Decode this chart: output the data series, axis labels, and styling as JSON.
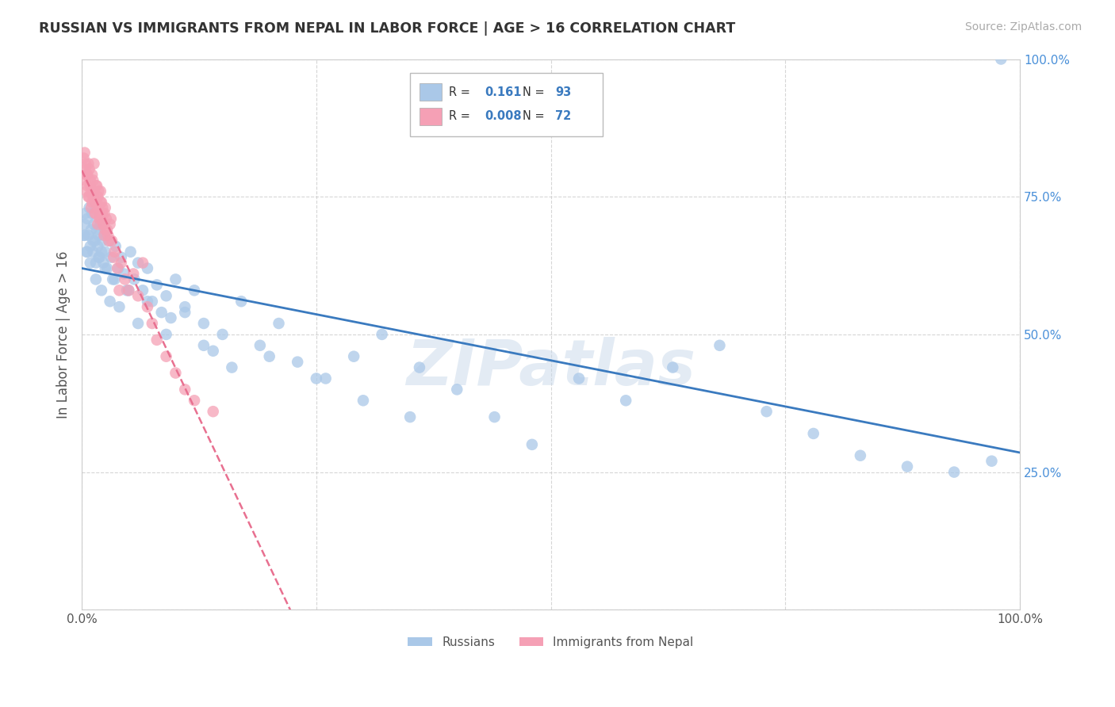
{
  "title": "RUSSIAN VS IMMIGRANTS FROM NEPAL IN LABOR FORCE | AGE > 16 CORRELATION CHART",
  "source": "Source: ZipAtlas.com",
  "ylabel": "In Labor Force | Age > 16",
  "blue_R": 0.161,
  "blue_N": 93,
  "pink_R": 0.008,
  "pink_N": 72,
  "blue_line_color": "#3a7abf",
  "pink_line_color": "#e87090",
  "blue_scatter_color": "#aac8e8",
  "pink_scatter_color": "#f5a0b5",
  "watermark": "ZIPatlas",
  "background_color": "#ffffff",
  "grid_color": "#cccccc",
  "blue_x": [
    0.002,
    0.003,
    0.004,
    0.005,
    0.006,
    0.007,
    0.008,
    0.009,
    0.01,
    0.011,
    0.012,
    0.013,
    0.014,
    0.015,
    0.016,
    0.017,
    0.018,
    0.019,
    0.02,
    0.021,
    0.022,
    0.023,
    0.024,
    0.025,
    0.027,
    0.029,
    0.031,
    0.033,
    0.036,
    0.039,
    0.042,
    0.045,
    0.048,
    0.052,
    0.056,
    0.06,
    0.065,
    0.07,
    0.075,
    0.08,
    0.085,
    0.09,
    0.095,
    0.1,
    0.11,
    0.12,
    0.13,
    0.14,
    0.15,
    0.17,
    0.19,
    0.21,
    0.23,
    0.26,
    0.29,
    0.32,
    0.36,
    0.4,
    0.44,
    0.48,
    0.53,
    0.58,
    0.63,
    0.68,
    0.73,
    0.78,
    0.83,
    0.88,
    0.93,
    0.97,
    0.003,
    0.006,
    0.009,
    0.012,
    0.015,
    0.018,
    0.021,
    0.025,
    0.03,
    0.035,
    0.04,
    0.05,
    0.06,
    0.07,
    0.09,
    0.11,
    0.13,
    0.16,
    0.2,
    0.25,
    0.3,
    0.35,
    0.98
  ],
  "blue_y": [
    0.68,
    0.7,
    0.72,
    0.65,
    0.71,
    0.68,
    0.73,
    0.66,
    0.69,
    0.72,
    0.65,
    0.7,
    0.67,
    0.63,
    0.69,
    0.66,
    0.68,
    0.64,
    0.7,
    0.65,
    0.67,
    0.63,
    0.68,
    0.65,
    0.62,
    0.67,
    0.64,
    0.6,
    0.66,
    0.62,
    0.64,
    0.61,
    0.58,
    0.65,
    0.6,
    0.63,
    0.58,
    0.62,
    0.56,
    0.59,
    0.54,
    0.57,
    0.53,
    0.6,
    0.55,
    0.58,
    0.52,
    0.47,
    0.5,
    0.56,
    0.48,
    0.52,
    0.45,
    0.42,
    0.46,
    0.5,
    0.44,
    0.4,
    0.35,
    0.3,
    0.42,
    0.38,
    0.44,
    0.48,
    0.36,
    0.32,
    0.28,
    0.26,
    0.25,
    0.27,
    0.68,
    0.65,
    0.63,
    0.67,
    0.6,
    0.64,
    0.58,
    0.62,
    0.56,
    0.6,
    0.55,
    0.58,
    0.52,
    0.56,
    0.5,
    0.54,
    0.48,
    0.44,
    0.46,
    0.42,
    0.38,
    0.35,
    1.0
  ],
  "pink_x": [
    0.002,
    0.003,
    0.004,
    0.005,
    0.006,
    0.007,
    0.008,
    0.009,
    0.01,
    0.011,
    0.012,
    0.013,
    0.014,
    0.015,
    0.016,
    0.017,
    0.018,
    0.019,
    0.02,
    0.021,
    0.022,
    0.023,
    0.024,
    0.025,
    0.026,
    0.028,
    0.03,
    0.032,
    0.035,
    0.038,
    0.042,
    0.046,
    0.05,
    0.055,
    0.06,
    0.065,
    0.07,
    0.075,
    0.08,
    0.09,
    0.1,
    0.11,
    0.12,
    0.14,
    0.003,
    0.004,
    0.005,
    0.006,
    0.007,
    0.008,
    0.009,
    0.01,
    0.011,
    0.012,
    0.013,
    0.014,
    0.015,
    0.016,
    0.017,
    0.018,
    0.019,
    0.02,
    0.021,
    0.022,
    0.023,
    0.024,
    0.025,
    0.027,
    0.029,
    0.031,
    0.034,
    0.04
  ],
  "pink_y": [
    0.82,
    0.78,
    0.8,
    0.76,
    0.79,
    0.81,
    0.75,
    0.77,
    0.73,
    0.79,
    0.75,
    0.81,
    0.72,
    0.77,
    0.74,
    0.7,
    0.76,
    0.72,
    0.74,
    0.71,
    0.73,
    0.7,
    0.72,
    0.69,
    0.71,
    0.68,
    0.7,
    0.67,
    0.65,
    0.62,
    0.63,
    0.6,
    0.58,
    0.61,
    0.57,
    0.63,
    0.55,
    0.52,
    0.49,
    0.46,
    0.43,
    0.4,
    0.38,
    0.36,
    0.83,
    0.81,
    0.79,
    0.77,
    0.75,
    0.8,
    0.78,
    0.76,
    0.74,
    0.78,
    0.76,
    0.74,
    0.72,
    0.77,
    0.75,
    0.73,
    0.71,
    0.76,
    0.74,
    0.72,
    0.7,
    0.68,
    0.73,
    0.69,
    0.67,
    0.71,
    0.64,
    0.58
  ]
}
